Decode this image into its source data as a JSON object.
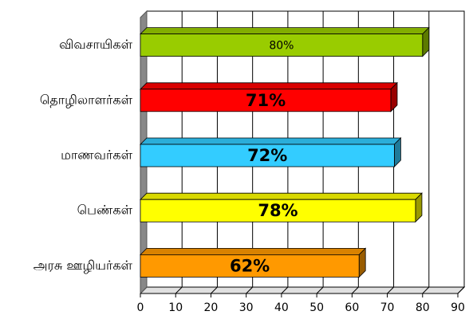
{
  "chart_data": {
    "type": "bar3d-horizontal",
    "categories": [
      "விவசாயிகள்",
      "தொழிலாளர்கள்",
      "மாணவர்கள்",
      "பெண்கள்",
      "அரசு ஊழியர்கள்"
    ],
    "values": [
      80,
      71,
      72,
      78,
      62
    ],
    "value_labels": [
      "80%",
      "71%",
      "72%",
      "78%",
      "62%"
    ],
    "colors": [
      "#99cc00",
      "#ff0000",
      "#33ccff",
      "#ffff00",
      "#ff9900"
    ],
    "xlim": [
      0,
      90
    ],
    "xticks": [
      0,
      10,
      20,
      30,
      40,
      50,
      60,
      70,
      80,
      90
    ],
    "grid": true
  }
}
